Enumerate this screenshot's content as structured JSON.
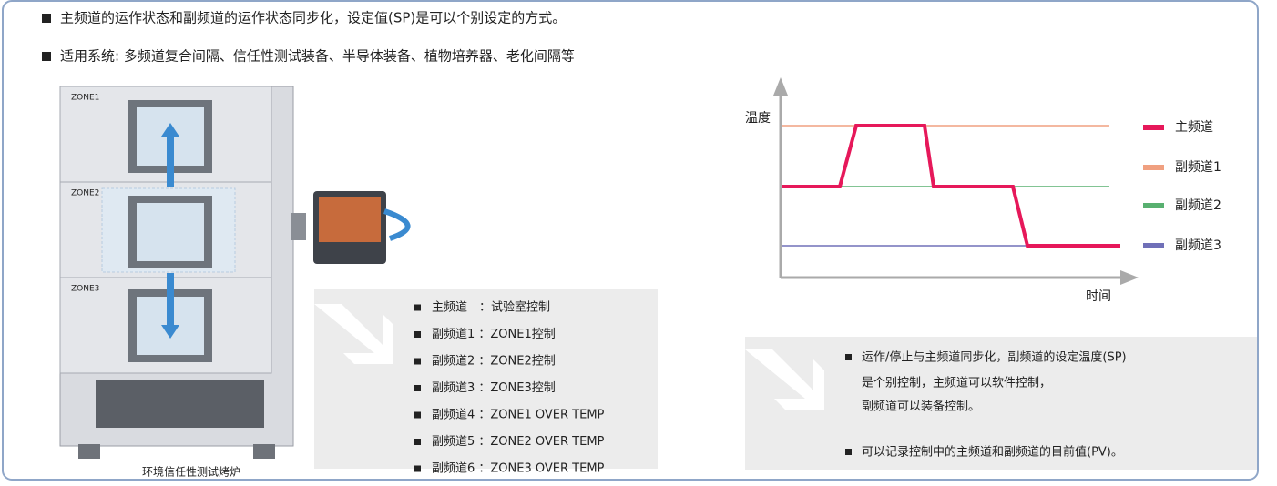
{
  "header": {
    "bullets": [
      "主频道的运作状态和副频道的运作状态同步化，设定值(SP)是可以个别设定的方式。",
      "适用系统: 多频道复合间隔、信任性测试装备、半导体装备、植物培养器、老化间隔等"
    ]
  },
  "oven": {
    "zones": [
      "ZONE1",
      "ZONE2",
      "ZONE3"
    ],
    "caption": "环境信任性测试烤炉"
  },
  "channel_list": [
    "主频道　：试验室控制",
    "副频道1 ：ZONE1控制",
    "副频道2 ：ZONE2控制",
    "副频道3 ：ZONE3控制",
    "副频道4 ：ZONE1 OVER TEMP",
    "副频道5 ：ZONE2 OVER TEMP",
    "副频道6 ：ZONE3 OVER TEMP"
  ],
  "diagram": {
    "y_label": "温度",
    "x_label": "时间",
    "legend": [
      "主频道",
      "副频道1",
      "副频道2",
      "副频道3"
    ]
  },
  "notes": [
    "运作/停止与主频道同步化，副频道的设定温度(SP)",
    "是个别控制，主频道可以软件控制，",
    "副频道可以装备控制。",
    "可以记录控制中的主频道和副频道的目前值(PV)。"
  ]
}
